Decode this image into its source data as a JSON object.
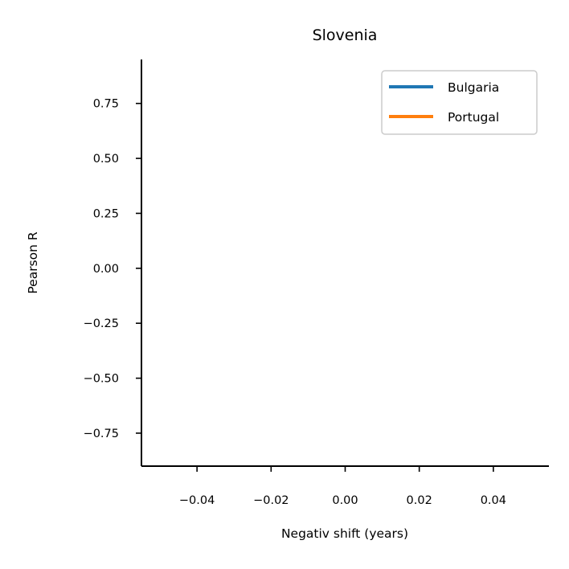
{
  "chart_data": {
    "type": "line",
    "title": "Slovenia",
    "xlabel": "Negativ shift (years)",
    "ylabel": "Pearson R",
    "xlim": [
      -0.055,
      0.055
    ],
    "ylim": [
      -0.9,
      0.95
    ],
    "xticks": [
      -0.04,
      -0.02,
      0.0,
      0.02,
      0.04
    ],
    "xtick_labels": [
      "−0.04",
      "−0.02",
      "0.00",
      "0.02",
      "0.04"
    ],
    "yticks": [
      0.75,
      0.5,
      0.25,
      0.0,
      -0.25,
      -0.5,
      -0.75
    ],
    "ytick_labels": [
      "0.75",
      "0.50",
      "0.25",
      "0.00",
      "−0.25",
      "−0.50",
      "−0.75"
    ],
    "grid": false,
    "legend_position": "top-right",
    "series": [
      {
        "name": "Bulgaria",
        "color": "#1f77b4",
        "x": [],
        "y": []
      },
      {
        "name": "Portugal",
        "color": "#ff7f0e",
        "x": [],
        "y": []
      }
    ]
  }
}
